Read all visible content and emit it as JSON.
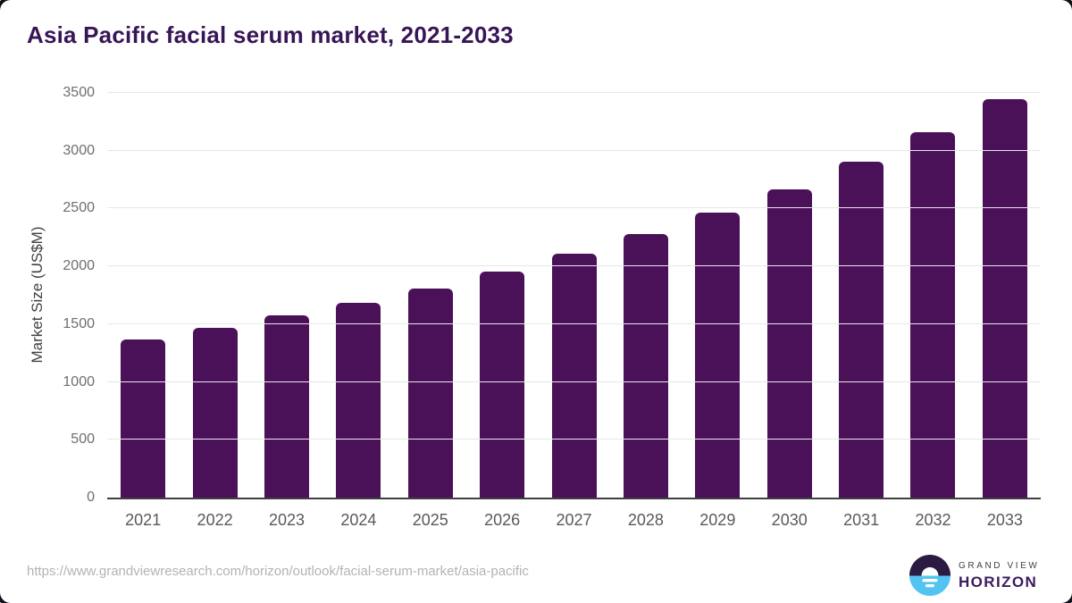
{
  "header": {
    "title": "Asia Pacific facial serum market, 2021-2033"
  },
  "chart_data": {
    "type": "bar",
    "title": "Asia Pacific facial serum market, 2021-2033",
    "categories": [
      "2021",
      "2022",
      "2023",
      "2024",
      "2025",
      "2026",
      "2027",
      "2028",
      "2029",
      "2030",
      "2031",
      "2032",
      "2033"
    ],
    "values": [
      1368,
      1468,
      1576,
      1687,
      1810,
      1952,
      2108,
      2278,
      2464,
      2668,
      2903,
      3160,
      3444
    ],
    "xlabel": "",
    "ylabel": "Market Size (US$M)",
    "ylim": [
      0,
      3500
    ],
    "ytick_step": 500,
    "grid": true,
    "legend_position": "none",
    "bar_color": "#4a1159"
  },
  "footer": {
    "source_url": "https://www.grandviewresearch.com/horizon/outlook/facial-serum-market/asia-pacific",
    "logo": {
      "line1": "GRAND VIEW",
      "line2": "HORIZON",
      "mark_top_color": "#2b1b40",
      "mark_bottom_color": "#53c4f1"
    }
  }
}
